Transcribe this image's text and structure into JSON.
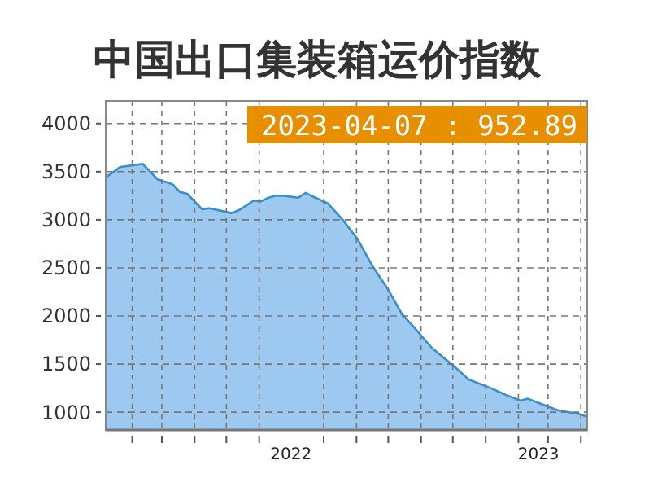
{
  "chart_data": {
    "type": "area",
    "title": "中国出口集装箱运价指数",
    "annotations": [
      "2023-04-07 : 952.89"
    ],
    "x": [
      "2022-01-07",
      "2022-01-21",
      "2022-02-11",
      "2022-02-25",
      "2022-03-11",
      "2022-03-18",
      "2022-03-25",
      "2022-04-08",
      "2022-04-15",
      "2022-05-06",
      "2022-05-13",
      "2022-05-27",
      "2022-06-02",
      "2022-06-10",
      "2022-06-17",
      "2022-06-24",
      "2022-07-08",
      "2022-07-15",
      "2022-07-22",
      "2022-08-05",
      "2022-08-19",
      "2022-09-02",
      "2022-09-16",
      "2022-09-30",
      "2022-10-14",
      "2022-10-28",
      "2022-11-11",
      "2022-12-02",
      "2022-12-16",
      "2023-01-06",
      "2023-01-20",
      "2023-02-03",
      "2023-02-10",
      "2023-02-24",
      "2023-03-10",
      "2023-03-31",
      "2023-04-07"
    ],
    "series": [
      {
        "color": "#3a8fc8",
        "values": [
          3440,
          3550,
          3580,
          3420,
          3370,
          3290,
          3270,
          3110,
          3120,
          3070,
          3100,
          3200,
          3190,
          3230,
          3250,
          3250,
          3230,
          3280,
          3240,
          3170,
          3000,
          2800,
          2520,
          2290,
          2020,
          1850,
          1670,
          1480,
          1340,
          1250,
          1180,
          1120,
          1140,
          1080,
          1020,
          980,
          952.89
        ]
      }
    ],
    "ylim": [
      815,
      4235
    ],
    "yticks": [
      1000,
      1500,
      2000,
      2500,
      3000,
      3500,
      4000
    ],
    "xlim": [
      "2022-01-07",
      "2023-04-07"
    ],
    "xticks": [
      {
        "value": "2022-02-01",
        "label": null
      },
      {
        "value": "2022-03-01",
        "label": null
      },
      {
        "value": "2022-04-01",
        "label": null
      },
      {
        "value": "2022-05-01",
        "label": null
      },
      {
        "value": "2022-06-01",
        "label": null
      },
      {
        "value": "2022-07-01",
        "label": "2022"
      },
      {
        "value": "2022-08-01",
        "label": null
      },
      {
        "value": "2022-09-01",
        "label": null
      },
      {
        "value": "2022-10-01",
        "label": null
      },
      {
        "value": "2022-11-01",
        "label": null
      },
      {
        "value": "2022-12-01",
        "label": null
      },
      {
        "value": "2023-01-01",
        "label": null
      },
      {
        "value": "2023-02-01",
        "label": null
      },
      {
        "value": "2023-02-20",
        "label": "2023"
      },
      {
        "value": "2023-03-01",
        "label": null
      },
      {
        "value": "2023-04-01",
        "label": null
      }
    ],
    "grid": true,
    "line_style": "dashed"
  }
}
